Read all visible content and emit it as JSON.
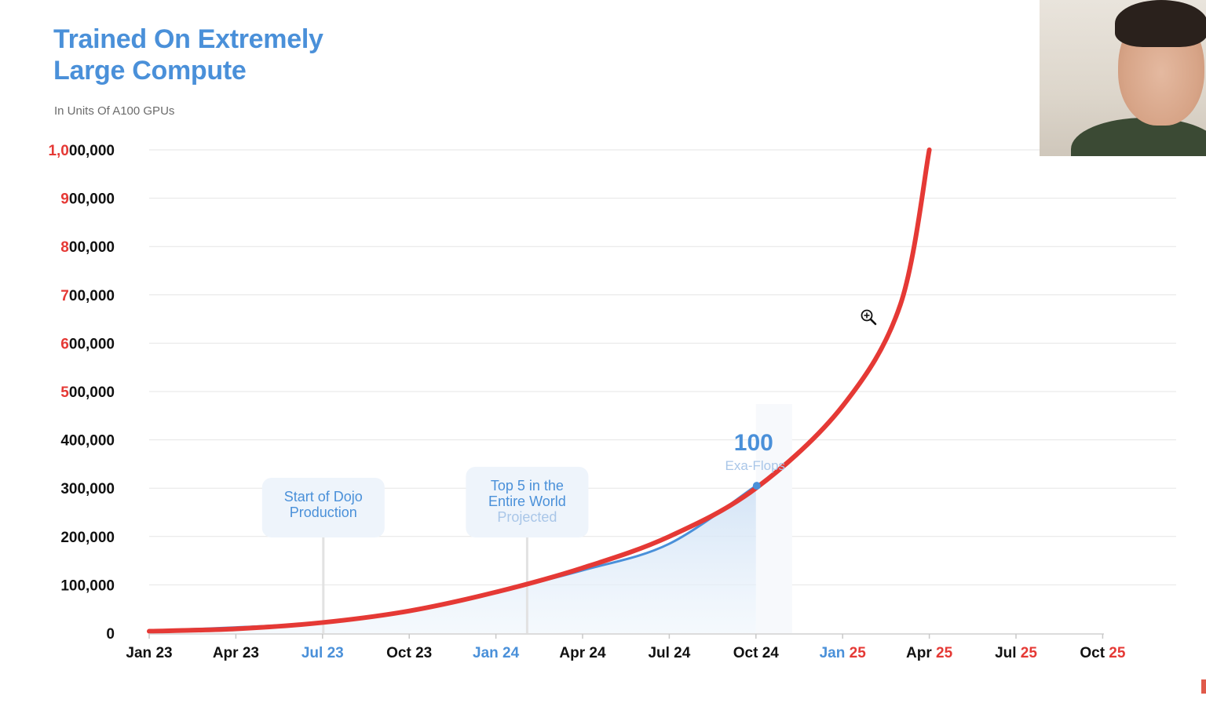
{
  "header": {
    "title_line1": "Trained On Extremely",
    "title_line2": "Large Compute",
    "subtitle": "In Units Of A100 GPUs"
  },
  "chart_data": {
    "type": "line",
    "title": "Trained On Extremely Large Compute",
    "subtitle": "In Units Of A100 GPUs",
    "xlabel": "",
    "ylabel": "",
    "ylim": [
      0,
      1000000
    ],
    "grid": true,
    "y_ticks": [
      {
        "value": 0,
        "red": "",
        "black": "0"
      },
      {
        "value": 100000,
        "red": "",
        "black": "100,000"
      },
      {
        "value": 200000,
        "red": "",
        "black": "200,000"
      },
      {
        "value": 300000,
        "red": "",
        "black": "300,000"
      },
      {
        "value": 400000,
        "red": "",
        "black": "400,000"
      },
      {
        "value": 500000,
        "red": "5",
        "black": "00,000"
      },
      {
        "value": 600000,
        "red": "6",
        "black": "00,000"
      },
      {
        "value": 700000,
        "red": "7",
        "black": "00,000"
      },
      {
        "value": 800000,
        "red": "8",
        "black": "00,000"
      },
      {
        "value": 900000,
        "red": "9",
        "black": "00,000"
      },
      {
        "value": 1000000,
        "red": "1,0",
        "black": "00,000"
      }
    ],
    "x_ticks": [
      {
        "label": "Jan 23",
        "parts": [
          {
            "t": "Jan 23",
            "c": "black"
          }
        ]
      },
      {
        "label": "Apr 23",
        "parts": [
          {
            "t": "Apr 23",
            "c": "black"
          }
        ]
      },
      {
        "label": "Jul 23",
        "parts": [
          {
            "t": "Jul 23",
            "c": "blue"
          }
        ]
      },
      {
        "label": "Oct 23",
        "parts": [
          {
            "t": "Oct 23",
            "c": "black"
          }
        ]
      },
      {
        "label": "Jan 24",
        "parts": [
          {
            "t": "Jan 24",
            "c": "blue"
          }
        ]
      },
      {
        "label": "Apr 24",
        "parts": [
          {
            "t": "Apr 24",
            "c": "black"
          }
        ]
      },
      {
        "label": "Jul 24",
        "parts": [
          {
            "t": "Jul 24",
            "c": "black"
          }
        ]
      },
      {
        "label": "Oct 24",
        "parts": [
          {
            "t": "Oct 24",
            "c": "black"
          }
        ]
      },
      {
        "label": "Jan 25",
        "parts": [
          {
            "t": "Jan ",
            "c": "blue"
          },
          {
            "t": "25",
            "c": "red"
          }
        ]
      },
      {
        "label": "Apr 25",
        "parts": [
          {
            "t": "Apr ",
            "c": "black"
          },
          {
            "t": "25",
            "c": "red"
          }
        ]
      },
      {
        "label": "Jul 25",
        "parts": [
          {
            "t": "Jul ",
            "c": "black"
          },
          {
            "t": "25",
            "c": "red"
          }
        ]
      },
      {
        "label": "Oct 25",
        "parts": [
          {
            "t": "Oct ",
            "c": "black"
          },
          {
            "t": "25",
            "c": "red"
          }
        ]
      }
    ],
    "series": [
      {
        "color": "#4a90d9",
        "x": [
          "Jan 23",
          "Apr 23",
          "Jul 23",
          "Oct 23",
          "Jan 24",
          "Apr 24",
          "Jul 24",
          "Oct 24"
        ],
        "values": [
          5000,
          12000,
          22000,
          45000,
          85000,
          130000,
          185000,
          305000
        ]
      },
      {
        "color": "#e53935",
        "x": [
          "Jan 23",
          "Apr 23",
          "Jul 23",
          "Oct 23",
          "Jan 24",
          "Apr 24",
          "Jul 24",
          "Oct 24",
          "Jan 25",
          "Mar 25",
          "Apr 25"
        ],
        "values": [
          4000,
          9000,
          22000,
          46000,
          85000,
          135000,
          200000,
          300000,
          470000,
          680000,
          1000000
        ]
      }
    ],
    "annotations": [
      {
        "x": "Jul 23",
        "line1": "Start of Dojo",
        "line2": "Production",
        "line3": ""
      },
      {
        "x": "Feb 24",
        "line1": "Top 5 in the",
        "line2": "Entire World",
        "line3": "Projected"
      }
    ],
    "callout": {
      "x": "Oct 24",
      "y": 305000,
      "value": "100",
      "unit": "Exa-Flops"
    },
    "colors": {
      "blue": "#4a90d9",
      "red": "#e53935",
      "black": "#111111",
      "grid": "#e6e6e6"
    }
  }
}
